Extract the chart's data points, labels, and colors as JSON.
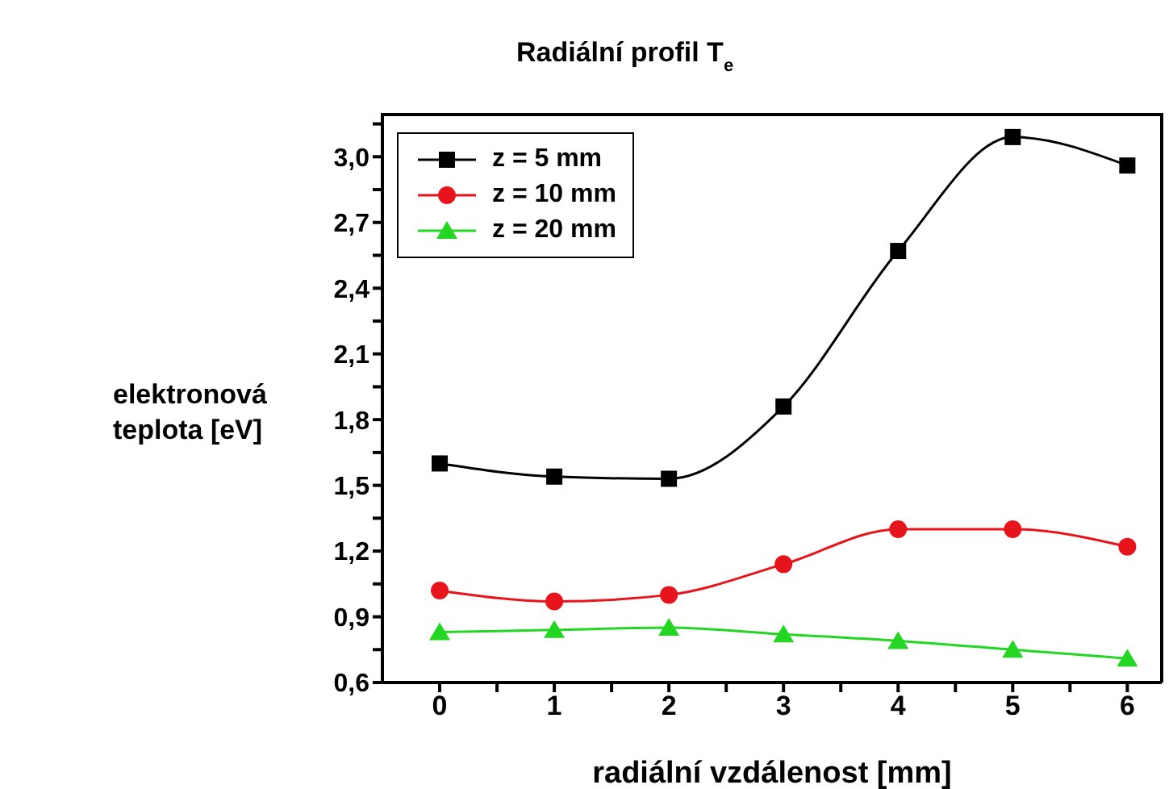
{
  "chart_data": {
    "type": "line",
    "title": "Radiální profil T$_{e}$",
    "xlabel": "radiální vzdálenost [mm]",
    "ylabel": "elektronová teplota [eV]",
    "x": [
      0,
      1,
      2,
      3,
      4,
      5,
      6
    ],
    "series": [
      {
        "name": "z = 5 mm",
        "color": "#000000",
        "marker": "square",
        "values": [
          1.6,
          1.54,
          1.53,
          1.86,
          2.57,
          3.09,
          2.96
        ]
      },
      {
        "name": "z = 10 mm",
        "color": "#e8141c",
        "marker": "circle",
        "values": [
          1.02,
          0.97,
          1.0,
          1.14,
          1.3,
          1.3,
          1.22
        ]
      },
      {
        "name": "z = 20 mm",
        "color": "#22d622",
        "marker": "triangle",
        "values": [
          0.83,
          0.84,
          0.85,
          0.82,
          0.79,
          0.75,
          0.71
        ]
      }
    ],
    "xlim": [
      -0.5,
      6.3
    ],
    "xticks": [
      0,
      {
        "value": 0.5,
        "label": null
      },
      1,
      {
        "value": 1.5,
        "label": null
      },
      2,
      {
        "value": 2.5,
        "label": null
      },
      3,
      {
        "value": 3.5,
        "label": null
      },
      4,
      {
        "value": 4.5,
        "label": null
      },
      5,
      {
        "value": 5.5,
        "label": null
      },
      6
    ],
    "ylim": [
      0.6,
      3.2
    ],
    "yticks": [
      {
        "value": 0.6,
        "label": "0,6"
      },
      {
        "value": 0.75,
        "label": null
      },
      {
        "value": 0.9,
        "label": "0,9"
      },
      {
        "value": 1.05,
        "label": null
      },
      {
        "value": 1.2,
        "label": "1,2"
      },
      {
        "value": 1.35,
        "label": null
      },
      {
        "value": 1.5,
        "label": "1,5"
      },
      {
        "value": 1.65,
        "label": null
      },
      {
        "value": 1.8,
        "label": "1,8"
      },
      {
        "value": 1.95,
        "label": null
      },
      {
        "value": 2.1,
        "label": "2,1"
      },
      {
        "value": 2.25,
        "label": null
      },
      {
        "value": 2.4,
        "label": "2,4"
      },
      {
        "value": 2.55,
        "label": null
      },
      {
        "value": 2.7,
        "label": "2,7"
      },
      {
        "value": 2.85,
        "label": null
      },
      {
        "value": 3.0,
        "label": "3,0"
      },
      {
        "value": 3.15,
        "label": null
      }
    ],
    "legend": "top left",
    "grid": false,
    "line_style": "solid"
  }
}
